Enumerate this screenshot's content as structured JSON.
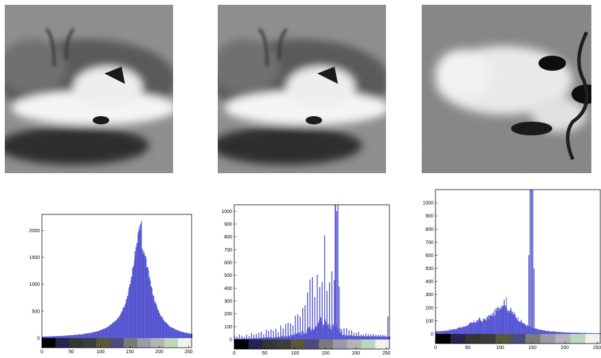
{
  "chart_data": [
    {
      "type": "bar",
      "xlim": [
        0,
        255
      ],
      "ylim": [
        0,
        2300
      ],
      "x_ticks": [
        "0",
        "50",
        "100",
        "150",
        "200",
        "250"
      ],
      "y_ticks": [
        "0",
        "500",
        "1000",
        "1500",
        "2000"
      ],
      "colorbar_colors": [
        "#000000",
        "#24244e",
        "#353535",
        "#3c3c3c",
        "#58583a",
        "#4c4c7a",
        "#7a7a7a",
        "#9a9aa8",
        "#b4b4b4",
        "#bcd8bc",
        "#f2f2ec"
      ],
      "bar_color": "#6b6bf0",
      "peaks": [
        {
          "x": 170,
          "y": 2150,
          "w": 19
        }
      ],
      "noise": 0.05,
      "spikes": []
    },
    {
      "type": "bar",
      "xlim": [
        0,
        255
      ],
      "ylim": [
        0,
        1050
      ],
      "x_ticks": [
        "0",
        "50",
        "100",
        "150",
        "200",
        "250"
      ],
      "y_ticks": [
        "0",
        "100",
        "200",
        "300",
        "400",
        "500",
        "600",
        "700",
        "800",
        "900",
        "1000"
      ],
      "colorbar_colors": [
        "#000000",
        "#24244e",
        "#353535",
        "#3c3c3c",
        "#58583a",
        "#4c4c7a",
        "#7a7a7a",
        "#9a9aa8",
        "#b4b4b4",
        "#bcd8bc",
        "#f2f2ec"
      ],
      "bar_color": "#6b6bf0",
      "peaks": [
        {
          "x": 150,
          "y": 420,
          "w": 30
        }
      ],
      "noise": 0.35,
      "comb": true,
      "spikes": [
        {
          "x": 165,
          "y": 1050
        },
        {
          "x": 166,
          "y": 1050
        },
        {
          "x": 168,
          "y": 1000
        },
        {
          "x": 170,
          "y": 1050
        },
        {
          "x": 252,
          "y": 180
        }
      ]
    },
    {
      "type": "bar",
      "xlim": [
        0,
        255
      ],
      "ylim": [
        0,
        1100
      ],
      "x_ticks": [
        "0",
        "50",
        "100",
        "150",
        "200",
        "250"
      ],
      "y_ticks": [
        "0",
        "100",
        "200",
        "300",
        "400",
        "500",
        "600",
        "700",
        "800",
        "900",
        "1000"
      ],
      "colorbar_colors": [
        "#000000",
        "#24244e",
        "#353535",
        "#3c3c3c",
        "#58583a",
        "#4c4c7a",
        "#7a7a7a",
        "#9a9aa8",
        "#b4b4b4",
        "#bcd8bc",
        "#f2f2ec"
      ],
      "bar_color": "#6b6bf0",
      "peaks": [
        {
          "x": 110,
          "y": 230,
          "w": 22
        },
        {
          "x": 70,
          "y": 60,
          "w": 30
        }
      ],
      "noise": 0.15,
      "spikes": [
        {
          "x": 144,
          "y": 600
        },
        {
          "x": 146,
          "y": 1100
        },
        {
          "x": 148,
          "y": 1100
        },
        {
          "x": 150,
          "y": 1100
        },
        {
          "x": 152,
          "y": 500
        }
      ]
    }
  ]
}
